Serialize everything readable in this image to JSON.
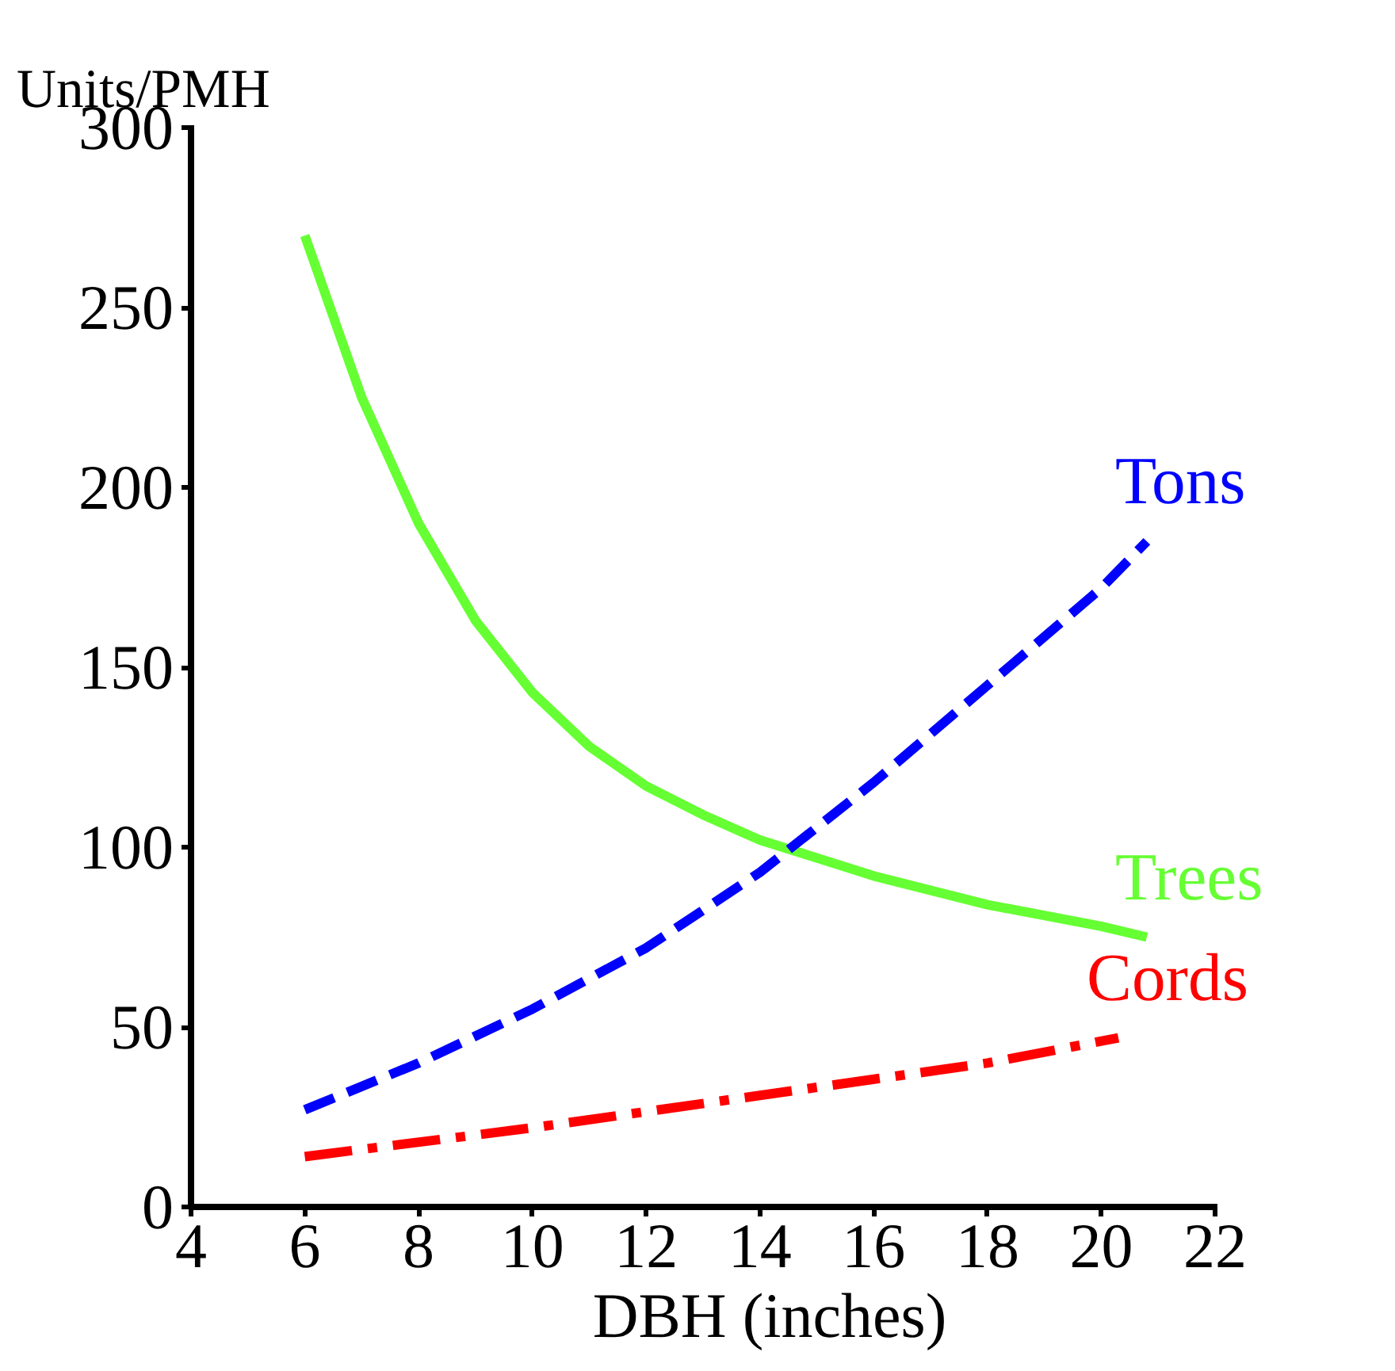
{
  "chart_data": {
    "type": "line",
    "xlabel": "DBH (inches)",
    "ylabel": "Units/PMH",
    "xlim": [
      4,
      22
    ],
    "xticks": [
      4,
      6,
      8,
      10,
      12,
      14,
      16,
      18,
      20,
      22
    ],
    "ylim": [
      0,
      300
    ],
    "yticks": [
      0,
      50,
      100,
      150,
      200,
      250,
      300
    ],
    "grid": false,
    "series": [
      {
        "name": "Trees",
        "color": "#66ff33",
        "line_style": "solid",
        "x": [
          6,
          7,
          8,
          9,
          10,
          11,
          12,
          13,
          14,
          16,
          18,
          20,
          20.8
        ],
        "values": [
          270,
          225,
          190,
          163,
          143,
          128,
          117,
          109,
          102,
          92,
          84,
          78,
          75
        ]
      },
      {
        "name": "Tons",
        "color": "#0000ff",
        "line_style": "dashed",
        "x": [
          6,
          8,
          10,
          12,
          14,
          16,
          18,
          20,
          20.8
        ],
        "values": [
          27,
          40,
          55,
          72,
          93,
          118,
          145,
          172,
          185
        ]
      },
      {
        "name": "Cords",
        "color": "#ff0000",
        "line_style": "dashdot",
        "x": [
          6,
          10,
          14,
          18,
          20.3
        ],
        "values": [
          14,
          22,
          31,
          40,
          47
        ]
      }
    ]
  }
}
